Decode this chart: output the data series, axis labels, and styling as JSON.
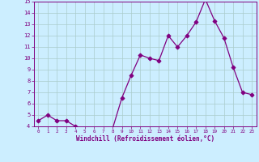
{
  "x": [
    0,
    1,
    2,
    3,
    4,
    5,
    6,
    7,
    8,
    9,
    10,
    11,
    12,
    13,
    14,
    15,
    16,
    17,
    18,
    19,
    20,
    21,
    22,
    23
  ],
  "y": [
    4.5,
    5.0,
    4.5,
    4.5,
    4.0,
    3.8,
    3.8,
    3.8,
    3.8,
    6.5,
    8.5,
    10.3,
    10.0,
    9.8,
    12.0,
    11.0,
    12.0,
    13.2,
    15.2,
    13.3,
    11.8,
    9.2,
    7.0,
    6.8
  ],
  "xlabel": "Windchill (Refroidissement éolien,°C)",
  "ylim": [
    4,
    15
  ],
  "xlim": [
    -0.5,
    23.5
  ],
  "yticks": [
    4,
    5,
    6,
    7,
    8,
    9,
    10,
    11,
    12,
    13,
    14,
    15
  ],
  "xticks": [
    0,
    1,
    2,
    3,
    4,
    5,
    6,
    7,
    8,
    9,
    10,
    11,
    12,
    13,
    14,
    15,
    16,
    17,
    18,
    19,
    20,
    21,
    22,
    23
  ],
  "line_color": "#800080",
  "marker": "D",
  "bg_color": "#cceeff",
  "grid_color": "#aacccc",
  "axis_label_color": "#800080",
  "tick_color": "#800080",
  "font": "monospace"
}
